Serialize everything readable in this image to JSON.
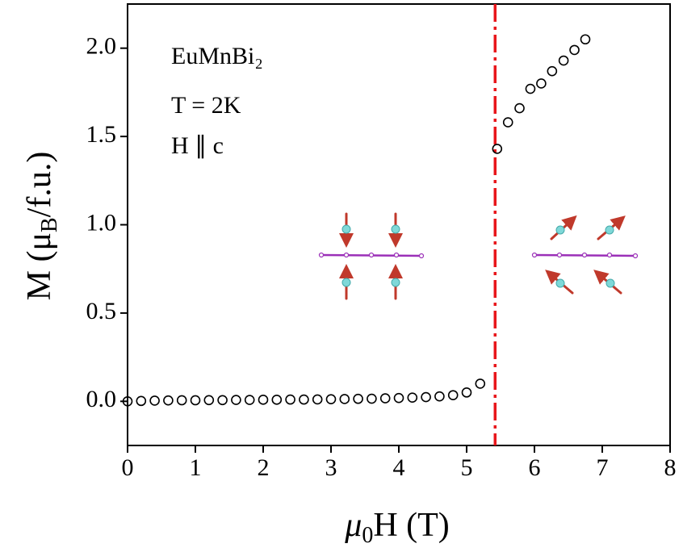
{
  "chart_data": {
    "type": "scatter",
    "xlabel": {
      "main": "μ",
      "sub": "0",
      "rest": "H (T)"
    },
    "ylabel": {
      "main": "M (μ",
      "sub": "B",
      "rest": "/f.u.)"
    },
    "annotations": [
      "EuMnBi₂",
      "T = 2K",
      "H ∥ c"
    ],
    "xlim": [
      0,
      8
    ],
    "ylim": [
      -0.25,
      2.25
    ],
    "xticks": [
      0,
      1,
      2,
      3,
      4,
      5,
      6,
      7,
      8
    ],
    "yticks": [
      {
        "value": 0,
        "label": "0.0"
      },
      0.5,
      {
        "value": 1,
        "label": "1.0"
      },
      1.5,
      {
        "value": 2,
        "label": "2.0"
      }
    ],
    "vline": {
      "x": 5.42,
      "color": "#e8161b"
    },
    "series": [
      {
        "color": "#000000",
        "x": [
          0,
          0.2,
          0.4,
          0.6,
          0.8,
          1.0,
          1.2,
          1.4,
          1.6,
          1.8,
          2.0,
          2.2,
          2.4,
          2.6,
          2.8,
          3.0,
          3.2,
          3.4,
          3.6,
          3.8,
          4.0,
          4.2,
          4.4,
          4.6,
          4.8,
          5.0,
          5.2,
          5.45,
          5.61,
          5.78,
          5.94,
          6.1,
          6.26,
          6.43,
          6.59,
          6.75
        ],
        "values": [
          0,
          0.002,
          0.004,
          0.005,
          0.006,
          0.006,
          0.007,
          0.007,
          0.008,
          0.008,
          0.009,
          0.009,
          0.01,
          0.01,
          0.011,
          0.012,
          0.013,
          0.014,
          0.015,
          0.017,
          0.019,
          0.021,
          0.024,
          0.028,
          0.035,
          0.05,
          0.1,
          1.43,
          1.58,
          1.66,
          1.77,
          1.8,
          1.87,
          1.93,
          1.99,
          2.05
        ]
      }
    ]
  }
}
